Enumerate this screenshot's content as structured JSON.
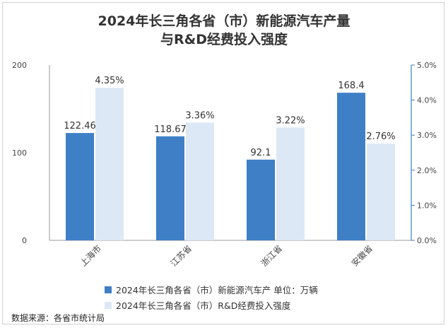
{
  "chart_data": {
    "type": "bar",
    "title_line1": "2024年长三角各省（市）新能源汽车产量",
    "title_line2": "与R&D经费投入强度",
    "categories": [
      "上海市",
      "江苏省",
      "浙江省",
      "安徽省"
    ],
    "series": [
      {
        "name": "2024年长三角各省（市）新能源汽车产  单位：万辆",
        "axis": "left",
        "values": [
          122.46,
          118.67,
          92.1,
          168.4
        ],
        "labels": [
          "122.46",
          "118.67",
          "92.1",
          "168.4"
        ],
        "color": "#3e7fc6"
      },
      {
        "name": "2024年长三角各省（市）R&D经费投入强度",
        "axis": "right",
        "values": [
          4.35,
          3.36,
          3.22,
          2.76
        ],
        "labels": [
          "4.35%",
          "3.36%",
          "3.22%",
          "2.76%"
        ],
        "color": "#dce8f5"
      }
    ],
    "y_left": {
      "min": 0,
      "max": 200,
      "ticks": [
        "0",
        "100",
        "200"
      ]
    },
    "y_right": {
      "min": 0,
      "max": 5,
      "ticks": [
        "0.0%",
        "1.0%",
        "2.0%",
        "3.0%",
        "4.0%",
        "5.0%"
      ],
      "color": "#3e7fc6"
    },
    "legend_position": "bottom",
    "grid": false
  },
  "source": "数据来源：各省市统计局"
}
